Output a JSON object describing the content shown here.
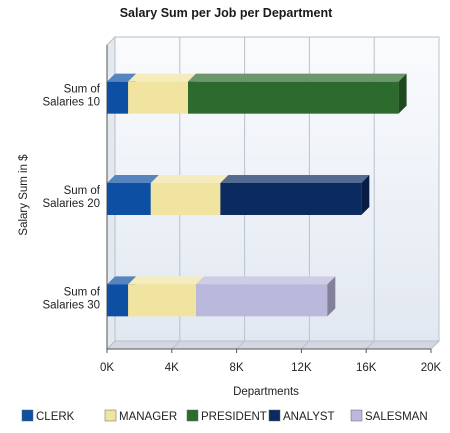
{
  "chart_data": {
    "type": "bar",
    "orientation": "horizontal",
    "stacked": true,
    "title": "Salary Sum per Job per Department",
    "xlabel": "Departments",
    "ylabel": "Salary Sum in $",
    "xlim": [
      0,
      20000
    ],
    "xticks": [
      0,
      4000,
      8000,
      12000,
      16000,
      20000
    ],
    "xtick_labels": [
      "0K",
      "4K",
      "8K",
      "12K",
      "16K",
      "20K"
    ],
    "categories": [
      [
        "Sum of",
        "Salaries 10"
      ],
      [
        "Sum of",
        "Salaries 20"
      ],
      [
        "Sum of",
        "Salaries 30"
      ]
    ],
    "series": [
      {
        "name": "CLERK",
        "color": "#0c4fa3",
        "values": [
          1300,
          2700,
          1300
        ]
      },
      {
        "name": "MANAGER",
        "color": "#f0e4a0",
        "values": [
          3700,
          4300,
          4200
        ]
      },
      {
        "name": "PRESIDENT",
        "color": "#2d6a2e",
        "values": [
          13000,
          0,
          0
        ]
      },
      {
        "name": "ANALYST",
        "color": "#0a2a60",
        "values": [
          0,
          8700,
          0
        ]
      },
      {
        "name": "SALESMAN",
        "color": "#bab8db",
        "values": [
          0,
          0,
          8100
        ]
      }
    ],
    "grid": true,
    "legend_position": "bottom"
  }
}
